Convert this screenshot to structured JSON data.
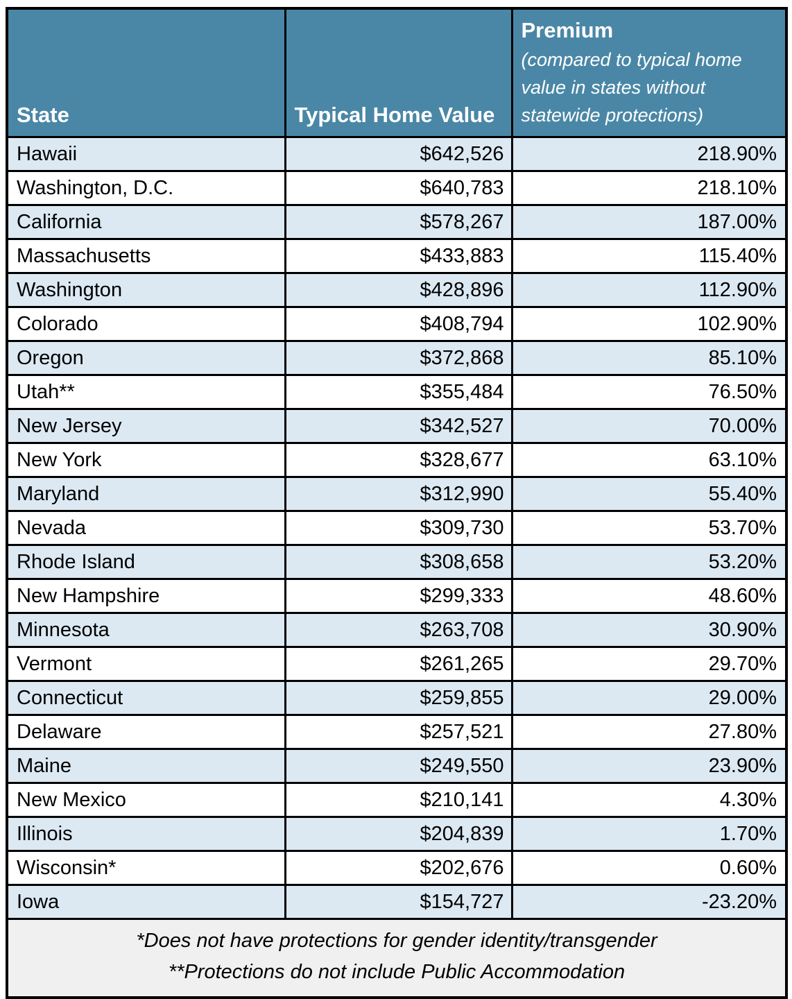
{
  "colors": {
    "header_bg": "#4A87A6",
    "header_text": "#FFFFFF",
    "row_alt_bg": "#DCE9F3",
    "row_bg": "#FFFFFF",
    "footer_bg": "#F0F0F0",
    "border": "#000000",
    "body_text": "#000000"
  },
  "table": {
    "header": {
      "state_label": "State",
      "value_label": "Typical Home Value",
      "premium": {
        "title": "Premium",
        "subtitle_lines": [
          "(compared to typical home",
          "value in states without",
          "statewide protections)"
        ]
      }
    },
    "rows": [
      {
        "state": "Hawaii",
        "value": "$642,526",
        "premium": "218.90%"
      },
      {
        "state": "Washington, D.C.",
        "value": "$640,783",
        "premium": "218.10%"
      },
      {
        "state": "California",
        "value": "$578,267",
        "premium": "187.00%"
      },
      {
        "state": "Massachusetts",
        "value": "$433,883",
        "premium": "115.40%"
      },
      {
        "state": "Washington",
        "value": "$428,896",
        "premium": "112.90%"
      },
      {
        "state": "Colorado",
        "value": "$408,794",
        "premium": "102.90%"
      },
      {
        "state": "Oregon",
        "value": "$372,868",
        "premium": "85.10%"
      },
      {
        "state": "Utah**",
        "value": "$355,484",
        "premium": "76.50%"
      },
      {
        "state": "New Jersey",
        "value": "$342,527",
        "premium": "70.00%"
      },
      {
        "state": "New York",
        "value": "$328,677",
        "premium": "63.10%"
      },
      {
        "state": "Maryland",
        "value": "$312,990",
        "premium": "55.40%"
      },
      {
        "state": "Nevada",
        "value": "$309,730",
        "premium": "53.70%"
      },
      {
        "state": "Rhode Island",
        "value": "$308,658",
        "premium": "53.20%"
      },
      {
        "state": "New Hampshire",
        "value": "$299,333",
        "premium": "48.60%"
      },
      {
        "state": "Minnesota",
        "value": "$263,708",
        "premium": "30.90%"
      },
      {
        "state": "Vermont",
        "value": "$261,265",
        "premium": "29.70%"
      },
      {
        "state": "Connecticut",
        "value": "$259,855",
        "premium": "29.00%"
      },
      {
        "state": "Delaware",
        "value": "$257,521",
        "premium": "27.80%"
      },
      {
        "state": "Maine",
        "value": "$249,550",
        "premium": "23.90%"
      },
      {
        "state": "New Mexico",
        "value": "$210,141",
        "premium": "4.30%"
      },
      {
        "state": "Illinois",
        "value": "$204,839",
        "premium": "1.70%"
      },
      {
        "state": "Wisconsin*",
        "value": "$202,676",
        "premium": "0.60%"
      },
      {
        "state": "Iowa",
        "value": "$154,727",
        "premium": "-23.20%"
      }
    ],
    "footnotes": [
      "*Does not have protections for gender identity/transgender",
      "**Protections do not include Public Accommodation"
    ]
  },
  "chart_data": {
    "type": "table",
    "title": "",
    "columns": [
      "State",
      "Typical Home Value",
      "Premium (compared to typical home value in states without statewide protections)"
    ],
    "rows": [
      [
        "Hawaii",
        "$642,526",
        "218.90%"
      ],
      [
        "Washington, D.C.",
        "$640,783",
        "218.10%"
      ],
      [
        "California",
        "$578,267",
        "187.00%"
      ],
      [
        "Massachusetts",
        "$433,883",
        "115.40%"
      ],
      [
        "Washington",
        "$428,896",
        "112.90%"
      ],
      [
        "Colorado",
        "$408,794",
        "102.90%"
      ],
      [
        "Oregon",
        "$372,868",
        "85.10%"
      ],
      [
        "Utah**",
        "$355,484",
        "76.50%"
      ],
      [
        "New Jersey",
        "$342,527",
        "70.00%"
      ],
      [
        "New York",
        "$328,677",
        "63.10%"
      ],
      [
        "Maryland",
        "$312,990",
        "55.40%"
      ],
      [
        "Nevada",
        "$309,730",
        "53.70%"
      ],
      [
        "Rhode Island",
        "$308,658",
        "53.20%"
      ],
      [
        "New Hampshire",
        "$299,333",
        "48.60%"
      ],
      [
        "Minnesota",
        "$263,708",
        "30.90%"
      ],
      [
        "Vermont",
        "$261,265",
        "29.70%"
      ],
      [
        "Connecticut",
        "$259,855",
        "29.00%"
      ],
      [
        "Delaware",
        "$257,521",
        "27.80%"
      ],
      [
        "Maine",
        "$249,550",
        "23.90%"
      ],
      [
        "New Mexico",
        "$210,141",
        "4.30%"
      ],
      [
        "Illinois",
        "$204,839",
        "1.70%"
      ],
      [
        "Wisconsin*",
        "$202,676",
        "0.60%"
      ],
      [
        "Iowa",
        "$154,727",
        "-23.20%"
      ]
    ],
    "footnotes": [
      "*Does not have protections for gender identity/transgender",
      "**Protections do not include Public Accommodation"
    ]
  }
}
